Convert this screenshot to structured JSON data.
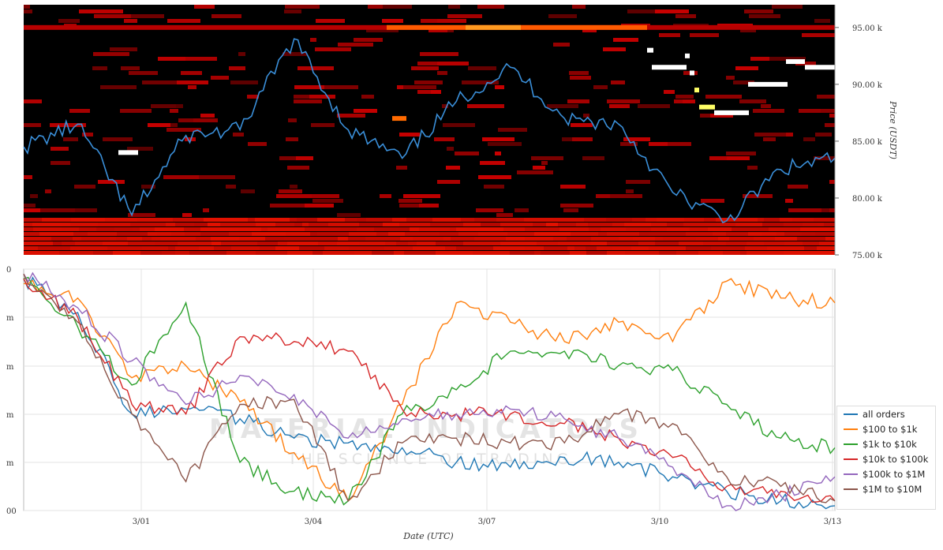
{
  "chart_data": [
    {
      "type": "heatmap",
      "description_of_encoding": "order-book liquidity heatmap with price line overlay",
      "ylabel": "Price (USDT)",
      "ylim": [
        75000,
        97000
      ],
      "y_ticks": [
        "75.00 k",
        "80.00 k",
        "85.00 k",
        "90.00 k",
        "95.00 k"
      ],
      "y_tick_values": [
        75000,
        80000,
        85000,
        90000,
        95000
      ],
      "price_series": {
        "color": "#3a8fd9",
        "x": [
          "2025-02-26",
          "2025-02-27",
          "2025-02-28",
          "2025-03-01",
          "2025-03-02",
          "2025-03-03",
          "2025-03-04",
          "2025-03-05",
          "2025-03-06",
          "2025-03-07",
          "2025-03-08",
          "2025-03-09",
          "2025-03-10",
          "2025-03-11",
          "2025-03-12",
          "2025-03-13"
        ],
        "y": [
          84500,
          86500,
          78500,
          85500,
          86000,
          94000,
          86000,
          83500,
          88500,
          91500,
          87000,
          86500,
          80500,
          78000,
          82500,
          83500
        ]
      }
    },
    {
      "type": "line",
      "xlabel": "Date (UTC)",
      "x_ticks": [
        "3/01",
        "3/04",
        "3/07",
        "3/10",
        "3/13"
      ],
      "y_ticks": [
        "0",
        "m",
        "m",
        "m",
        "m",
        "m",
        "00"
      ],
      "series": [
        {
          "name": "all orders",
          "color": "#1f77b4",
          "values": [
            96,
            82,
            40,
            42,
            38,
            30,
            28,
            26,
            20,
            18,
            22,
            20,
            14,
            8,
            4,
            2
          ]
        },
        {
          "name": "$100 to $1k",
          "color": "#ff7f0e",
          "values": [
            94,
            88,
            55,
            60,
            45,
            24,
            4,
            44,
            86,
            78,
            70,
            78,
            70,
            95,
            88,
            86
          ]
        },
        {
          "name": "$1k to $10k",
          "color": "#2ca02c",
          "values": [
            96,
            76,
            52,
            86,
            20,
            8,
            4,
            40,
            50,
            66,
            66,
            60,
            58,
            44,
            30,
            26
          ]
        },
        {
          "name": "$10k to $100k",
          "color": "#d62728",
          "values": [
            96,
            80,
            44,
            40,
            72,
            70,
            66,
            42,
            40,
            40,
            36,
            30,
            22,
            10,
            8,
            4
          ]
        },
        {
          "name": "$100k to $1M",
          "color": "#9467bd",
          "values": [
            98,
            84,
            62,
            44,
            56,
            48,
            30,
            38,
            40,
            42,
            38,
            30,
            18,
            2,
            6,
            14
          ]
        },
        {
          "name": "$1M to $10M",
          "color": "#8c564b",
          "values": [
            98,
            78,
            40,
            12,
            44,
            46,
            4,
            28,
            30,
            28,
            28,
            40,
            36,
            14,
            10,
            4
          ]
        }
      ]
    }
  ],
  "watermark": {
    "title": "MATERIAL INDICATORS",
    "subtitle": "THE SCIENCE OF TRADING"
  }
}
